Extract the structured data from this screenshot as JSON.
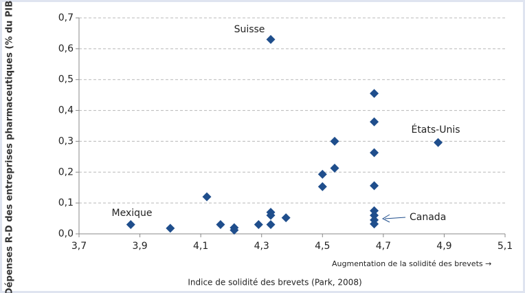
{
  "chart_data": {
    "type": "scatter",
    "ylabel": "Dépenses R-D des entreprises pharmaceutiques (% du PIB)",
    "xlabel": "Indice de solidité des brevets (Park, 2008)",
    "annotations": [
      "Suisse",
      "États-Unis",
      "Mexique",
      "Canada",
      "Augmentation de la solidité des brevets →"
    ],
    "color": "#1f4e8c",
    "marker": "diamond",
    "grid": true,
    "xlim": [
      3.7,
      5.1
    ],
    "ylim": [
      0,
      0.7
    ],
    "xticks": [
      {
        "value": 3.7,
        "label": "3,7"
      },
      {
        "value": 3.9,
        "label": "3,9"
      },
      {
        "value": 4.1,
        "label": "4,1"
      },
      {
        "value": 4.3,
        "label": "4,3"
      },
      {
        "value": 4.5,
        "label": "4,5"
      },
      {
        "value": 4.7,
        "label": "4,7"
      },
      {
        "value": 4.9,
        "label": "4,9"
      },
      {
        "value": 5.1,
        "label": "5,1"
      }
    ],
    "yticks": [
      {
        "value": 0,
        "label": "0,0"
      },
      {
        "value": 0.1,
        "label": "0,1"
      },
      {
        "value": 0.2,
        "label": "0,2"
      },
      {
        "value": 0.3,
        "label": "0,3"
      },
      {
        "value": 0.4,
        "label": "0,4"
      },
      {
        "value": 0.5,
        "label": "0,5"
      },
      {
        "value": 0.6,
        "label": "0,6"
      },
      {
        "value": 0.7,
        "label": "0,7"
      }
    ],
    "x": [
      3.87,
      4.0,
      4.12,
      4.165,
      4.21,
      4.21,
      4.29,
      4.33,
      4.33,
      4.33,
      4.33,
      4.38,
      4.5,
      4.5,
      4.54,
      4.54,
      4.67,
      4.67,
      4.67,
      4.67,
      4.67,
      4.67,
      4.67,
      4.67,
      4.88
    ],
    "values": [
      0.03,
      0.018,
      0.12,
      0.03,
      0.02,
      0.012,
      0.03,
      0.07,
      0.06,
      0.03,
      0.63,
      0.052,
      0.193,
      0.153,
      0.3,
      0.213,
      0.455,
      0.363,
      0.263,
      0.156,
      0.075,
      0.06,
      0.045,
      0.032,
      0.296
    ]
  }
}
